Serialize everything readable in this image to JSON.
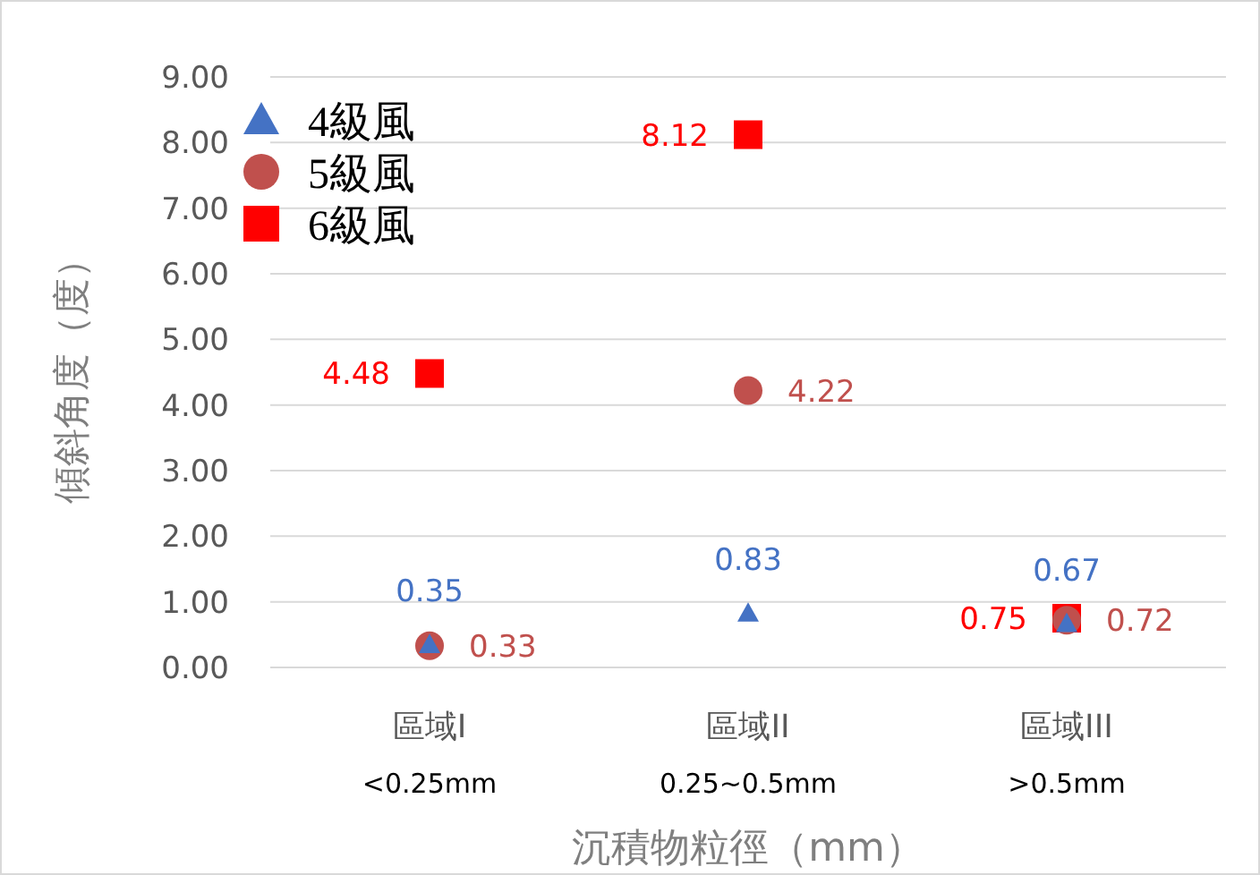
{
  "chart_data": {
    "type": "scatter",
    "xlabel": "沉積物粒徑（mm）",
    "ylabel": "傾斜角度（度）",
    "categories": [
      "區域I\n<0.25mm",
      "區域II\n0.25~0.5mm",
      "區域III\n>0.5mm"
    ],
    "series": [
      {
        "name": "4級風",
        "color": "#4472c4",
        "marker": "triangle",
        "values": [
          0.35,
          0.83,
          0.67
        ]
      },
      {
        "name": "5級風",
        "color": "#c0504d",
        "marker": "circle",
        "values": [
          0.33,
          4.22,
          0.72
        ]
      },
      {
        "name": "6級風",
        "color": "#ff0000",
        "marker": "square",
        "values": [
          4.48,
          8.12,
          0.75
        ]
      }
    ],
    "ylim": [
      0,
      9
    ],
    "yticks": [
      {
        "value": 0,
        "label": "0.00"
      },
      {
        "value": 1,
        "label": "1.00"
      },
      {
        "value": 2,
        "label": "2.00"
      },
      {
        "value": 3,
        "label": "3.00"
      },
      {
        "value": 4,
        "label": "4.00"
      },
      {
        "value": 5,
        "label": "5.00"
      },
      {
        "value": 6,
        "label": "6.00"
      },
      {
        "value": 7,
        "label": "7.00"
      },
      {
        "value": 8,
        "label": "8.00"
      },
      {
        "value": 9,
        "label": "9.00"
      }
    ],
    "grid": "y",
    "legend": "top left",
    "data_labels": true
  }
}
